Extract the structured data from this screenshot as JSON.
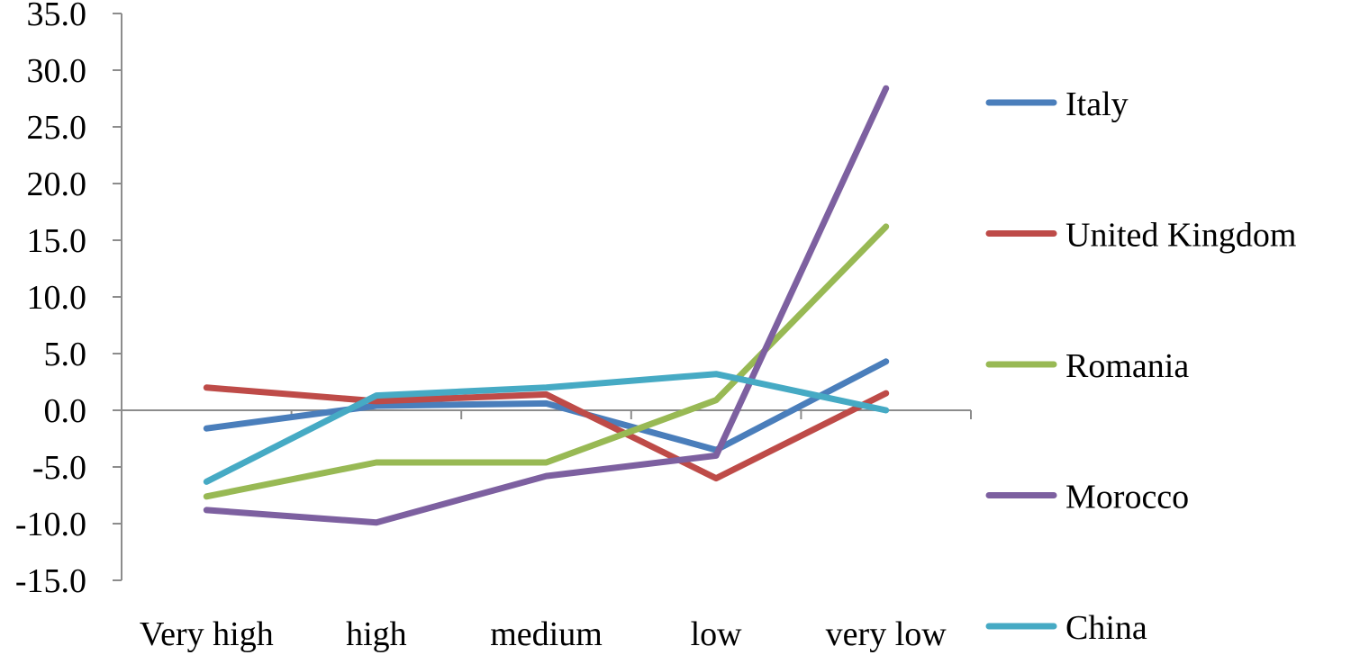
{
  "chart_data": {
    "type": "line",
    "title": "",
    "xlabel": "",
    "ylabel": "",
    "categories": [
      "Very high",
      "high",
      "medium",
      "low",
      "very low"
    ],
    "ylim": [
      -15.0,
      35.0
    ],
    "y_ticks": [
      "35.0",
      "30.0",
      "25.0",
      "20.0",
      "15.0",
      "10.0",
      "5.0",
      "0.0",
      "-5.0",
      "-10.0",
      "-15.0"
    ],
    "y_tick_values": [
      35,
      30,
      25,
      20,
      15,
      10,
      5,
      0,
      -5,
      -10,
      -15
    ],
    "grid": false,
    "legend_position": "right",
    "series": [
      {
        "name": "Italy",
        "color": "#4a7ebb",
        "values": [
          -1.6,
          0.4,
          0.6,
          -3.5,
          4.3
        ]
      },
      {
        "name": "United Kingdom",
        "color": "#be4b48",
        "values": [
          2.0,
          0.8,
          1.4,
          -6.0,
          1.5
        ]
      },
      {
        "name": "Romania",
        "color": "#98b954",
        "values": [
          -7.6,
          -4.6,
          -4.6,
          0.9,
          16.2
        ]
      },
      {
        "name": "Morocco",
        "color": "#7d60a0",
        "values": [
          -8.8,
          -9.9,
          -5.8,
          -4.0,
          28.4
        ]
      },
      {
        "name": "China",
        "color": "#46aac4",
        "values": [
          -6.3,
          1.3,
          2.0,
          3.2,
          0.0
        ]
      }
    ]
  }
}
